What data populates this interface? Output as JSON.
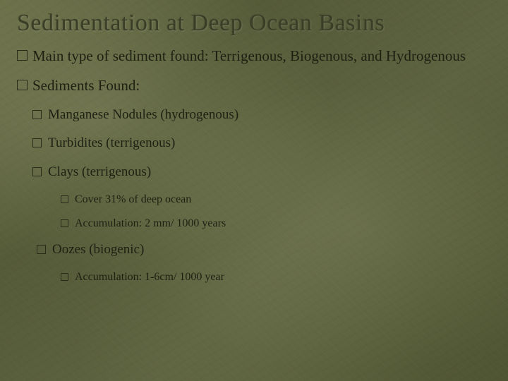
{
  "slide": {
    "title": "Sedimentation at Deep Ocean Basins",
    "title_fontsize": 34,
    "title_color": "#3a3e26",
    "background_base": "#5a5f3e",
    "text_color": "#1e2012",
    "bullet_border_color": "#2a2c1a",
    "bullets": {
      "main_type": "Main type of sediment found: Terrigenous, Biogenous, and Hydrogenous",
      "sediments_found": "Sediments Found:",
      "items": [
        {
          "label": "Manganese Nodules (hydrogenous)"
        },
        {
          "label": "Turbidites (terrigenous)"
        },
        {
          "label": "Clays (terrigenous)",
          "sub": [
            "Cover 31% of deep ocean",
            "Accumulation: 2 mm/ 1000 years"
          ]
        },
        {
          "label": "Oozes (biogenic)",
          "sub": [
            "Accumulation: 1-6cm/ 1000 year"
          ]
        }
      ]
    },
    "font_family": "Georgia",
    "l1_fontsize": 21,
    "l2_fontsize": 19,
    "l3_fontsize": 16
  }
}
